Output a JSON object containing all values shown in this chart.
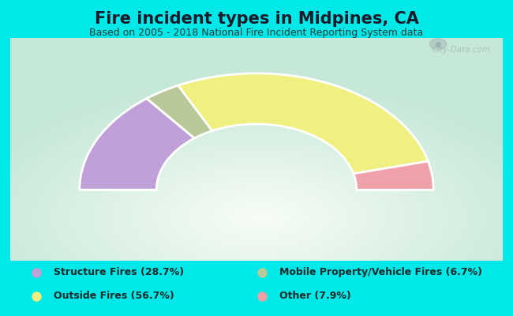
{
  "title": "Fire incident types in Midpines, CA",
  "subtitle": "Based on 2005 - 2018 National Fire Incident Reporting System data",
  "title_fontsize": 15,
  "subtitle_fontsize": 9,
  "background_outer": "#00e8e8",
  "background_chart_edge": "#c8e8d8",
  "background_chart_center": "#f0f8f4",
  "values": [
    28.7,
    6.7,
    56.7,
    7.9
  ],
  "colors": [
    "#c0a0d8",
    "#b8c898",
    "#f0f080",
    "#f0a0a8"
  ],
  "legend_labels_left": [
    "Structure Fires (28.7%)",
    "Outside Fires (56.7%)"
  ],
  "legend_colors_left": [
    "#c0a0d8",
    "#f0f080"
  ],
  "legend_labels_right": [
    "Mobile Property/Vehicle Fires (6.7%)",
    "Other (7.9%)"
  ],
  "legend_colors_right": [
    "#b8c898",
    "#f0a0a8"
  ],
  "watermark": "City-Data.com",
  "outer_r": 1.15,
  "inner_r": 0.65
}
